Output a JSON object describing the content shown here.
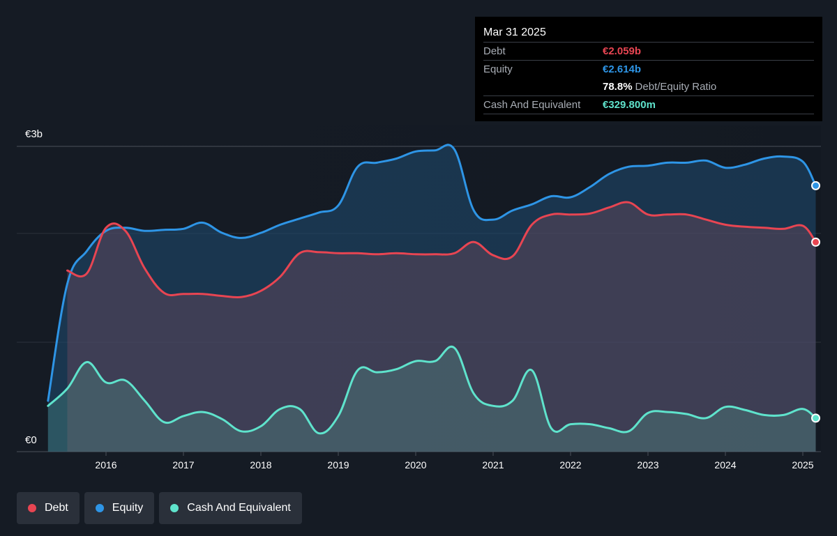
{
  "tooltip": {
    "date": "Mar 31 2025",
    "rows": [
      {
        "label": "Debt",
        "value": "€2.059b",
        "color": "#e84552"
      },
      {
        "label": "Equity",
        "value": "€2.614b",
        "color": "#2e95e6"
      },
      {
        "ratio_value": "78.8%",
        "ratio_label": "Debt/Equity Ratio"
      },
      {
        "label": "Cash And Equivalent",
        "value": "€329.800m",
        "color": "#5fe3cc"
      }
    ]
  },
  "y_axis": {
    "top_label": "€3b",
    "bottom_label": "€0"
  },
  "legend": [
    {
      "label": "Debt",
      "color": "#e84552"
    },
    {
      "label": "Equity",
      "color": "#2e95e6"
    },
    {
      "label": "Cash And Equivalent",
      "color": "#5fe3cc"
    }
  ],
  "chart_data": {
    "type": "area",
    "x_ticks": [
      "2016",
      "2017",
      "2018",
      "2019",
      "2020",
      "2021",
      "2022",
      "2023",
      "2024",
      "2025"
    ],
    "ylim": [
      0,
      3.0
    ],
    "y_unit": "€ billions",
    "series": [
      {
        "name": "Equity",
        "color": "#2e95e6",
        "points": [
          [
            "2015-04",
            0.5
          ],
          [
            "2015-07",
            1.65
          ],
          [
            "2015-10",
            1.97
          ],
          [
            "2016-01",
            2.17
          ],
          [
            "2016-04",
            2.2
          ],
          [
            "2016-07",
            2.17
          ],
          [
            "2016-10",
            2.18
          ],
          [
            "2017-01",
            2.19
          ],
          [
            "2017-04",
            2.25
          ],
          [
            "2017-07",
            2.15
          ],
          [
            "2017-10",
            2.1
          ],
          [
            "2018-01",
            2.15
          ],
          [
            "2018-04",
            2.23
          ],
          [
            "2018-07",
            2.29
          ],
          [
            "2018-10",
            2.35
          ],
          [
            "2019-01",
            2.42
          ],
          [
            "2019-04",
            2.8
          ],
          [
            "2019-07",
            2.84
          ],
          [
            "2019-10",
            2.88
          ],
          [
            "2020-01",
            2.95
          ],
          [
            "2020-04",
            2.96
          ],
          [
            "2020-07",
            2.97
          ],
          [
            "2020-10",
            2.37
          ],
          [
            "2021-01",
            2.28
          ],
          [
            "2021-04",
            2.37
          ],
          [
            "2021-07",
            2.43
          ],
          [
            "2021-10",
            2.51
          ],
          [
            "2022-01",
            2.5
          ],
          [
            "2022-04",
            2.6
          ],
          [
            "2022-07",
            2.73
          ],
          [
            "2022-10",
            2.8
          ],
          [
            "2023-01",
            2.81
          ],
          [
            "2023-04",
            2.84
          ],
          [
            "2023-07",
            2.84
          ],
          [
            "2023-10",
            2.86
          ],
          [
            "2024-01",
            2.79
          ],
          [
            "2024-04",
            2.82
          ],
          [
            "2024-07",
            2.88
          ],
          [
            "2024-10",
            2.9
          ],
          [
            "2025-01",
            2.85
          ],
          [
            "2025-03",
            2.614
          ]
        ]
      },
      {
        "name": "Debt",
        "color": "#e84552",
        "points": [
          [
            "2015-07",
            1.78
          ],
          [
            "2015-10",
            1.75
          ],
          [
            "2016-01",
            2.2
          ],
          [
            "2016-04",
            2.17
          ],
          [
            "2016-07",
            1.8
          ],
          [
            "2016-10",
            1.56
          ],
          [
            "2017-01",
            1.55
          ],
          [
            "2017-04",
            1.55
          ],
          [
            "2017-07",
            1.53
          ],
          [
            "2017-10",
            1.52
          ],
          [
            "2018-01",
            1.58
          ],
          [
            "2018-04",
            1.72
          ],
          [
            "2018-07",
            1.95
          ],
          [
            "2018-10",
            1.96
          ],
          [
            "2019-01",
            1.95
          ],
          [
            "2019-04",
            1.95
          ],
          [
            "2019-07",
            1.94
          ],
          [
            "2019-10",
            1.95
          ],
          [
            "2020-01",
            1.94
          ],
          [
            "2020-04",
            1.94
          ],
          [
            "2020-07",
            1.95
          ],
          [
            "2020-10",
            2.06
          ],
          [
            "2021-01",
            1.93
          ],
          [
            "2021-04",
            1.92
          ],
          [
            "2021-07",
            2.23
          ],
          [
            "2021-10",
            2.33
          ],
          [
            "2022-01",
            2.33
          ],
          [
            "2022-04",
            2.34
          ],
          [
            "2022-07",
            2.4
          ],
          [
            "2022-10",
            2.45
          ],
          [
            "2023-01",
            2.33
          ],
          [
            "2023-04",
            2.33
          ],
          [
            "2023-07",
            2.33
          ],
          [
            "2023-10",
            2.28
          ],
          [
            "2024-01",
            2.23
          ],
          [
            "2024-04",
            2.21
          ],
          [
            "2024-07",
            2.2
          ],
          [
            "2024-10",
            2.19
          ],
          [
            "2025-01",
            2.22
          ],
          [
            "2025-03",
            2.059
          ]
        ]
      },
      {
        "name": "Cash And Equivalent",
        "color": "#5fe3cc",
        "points": [
          [
            "2015-04",
            0.45
          ],
          [
            "2015-07",
            0.62
          ],
          [
            "2015-10",
            0.88
          ],
          [
            "2016-01",
            0.68
          ],
          [
            "2016-04",
            0.7
          ],
          [
            "2016-07",
            0.5
          ],
          [
            "2016-10",
            0.29
          ],
          [
            "2017-01",
            0.35
          ],
          [
            "2017-04",
            0.39
          ],
          [
            "2017-07",
            0.32
          ],
          [
            "2017-10",
            0.2
          ],
          [
            "2018-01",
            0.25
          ],
          [
            "2018-04",
            0.42
          ],
          [
            "2018-07",
            0.42
          ],
          [
            "2018-10",
            0.18
          ],
          [
            "2019-01",
            0.35
          ],
          [
            "2019-04",
            0.8
          ],
          [
            "2019-07",
            0.78
          ],
          [
            "2019-10",
            0.81
          ],
          [
            "2020-01",
            0.89
          ],
          [
            "2020-04",
            0.89
          ],
          [
            "2020-07",
            1.02
          ],
          [
            "2020-10",
            0.57
          ],
          [
            "2021-01",
            0.45
          ],
          [
            "2021-04",
            0.5
          ],
          [
            "2021-07",
            0.8
          ],
          [
            "2021-10",
            0.23
          ],
          [
            "2022-01",
            0.27
          ],
          [
            "2022-04",
            0.27
          ],
          [
            "2022-07",
            0.23
          ],
          [
            "2022-10",
            0.2
          ],
          [
            "2023-01",
            0.38
          ],
          [
            "2023-04",
            0.39
          ],
          [
            "2023-07",
            0.37
          ],
          [
            "2023-10",
            0.33
          ],
          [
            "2024-01",
            0.44
          ],
          [
            "2024-04",
            0.41
          ],
          [
            "2024-07",
            0.36
          ],
          [
            "2024-10",
            0.36
          ],
          [
            "2025-01",
            0.42
          ],
          [
            "2025-03",
            0.3298
          ]
        ]
      }
    ]
  }
}
